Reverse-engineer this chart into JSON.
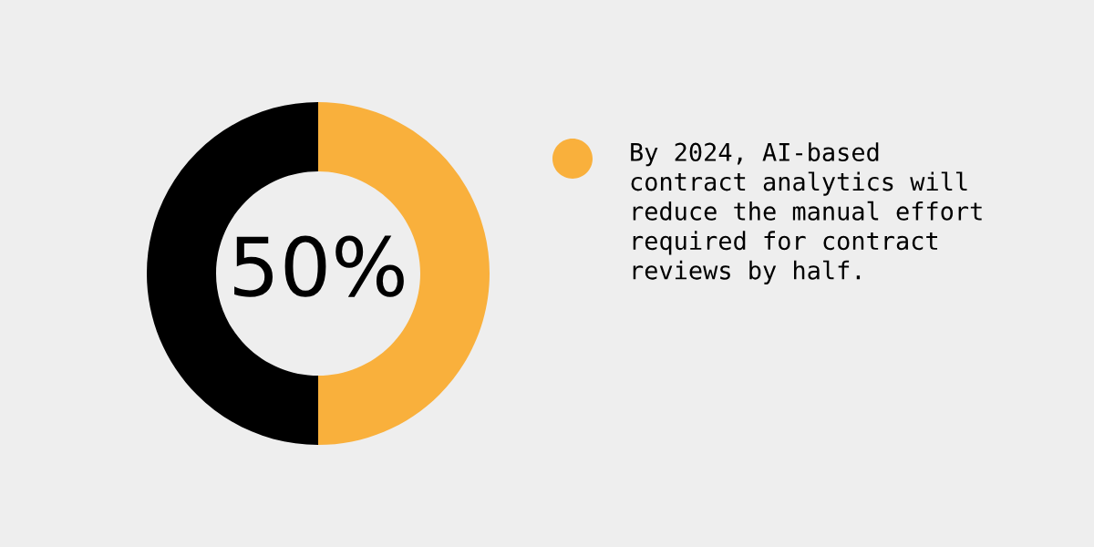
{
  "chart_data": {
    "type": "donut",
    "categories": [
      "By 2024, AI-based contract analytics will reduce the manual effort required for contract reviews by half.",
      null
    ],
    "values": [
      50,
      50
    ],
    "colors": [
      "#f9b03c",
      "#000000"
    ],
    "annotations": [
      "50%"
    ],
    "legend": "right"
  }
}
